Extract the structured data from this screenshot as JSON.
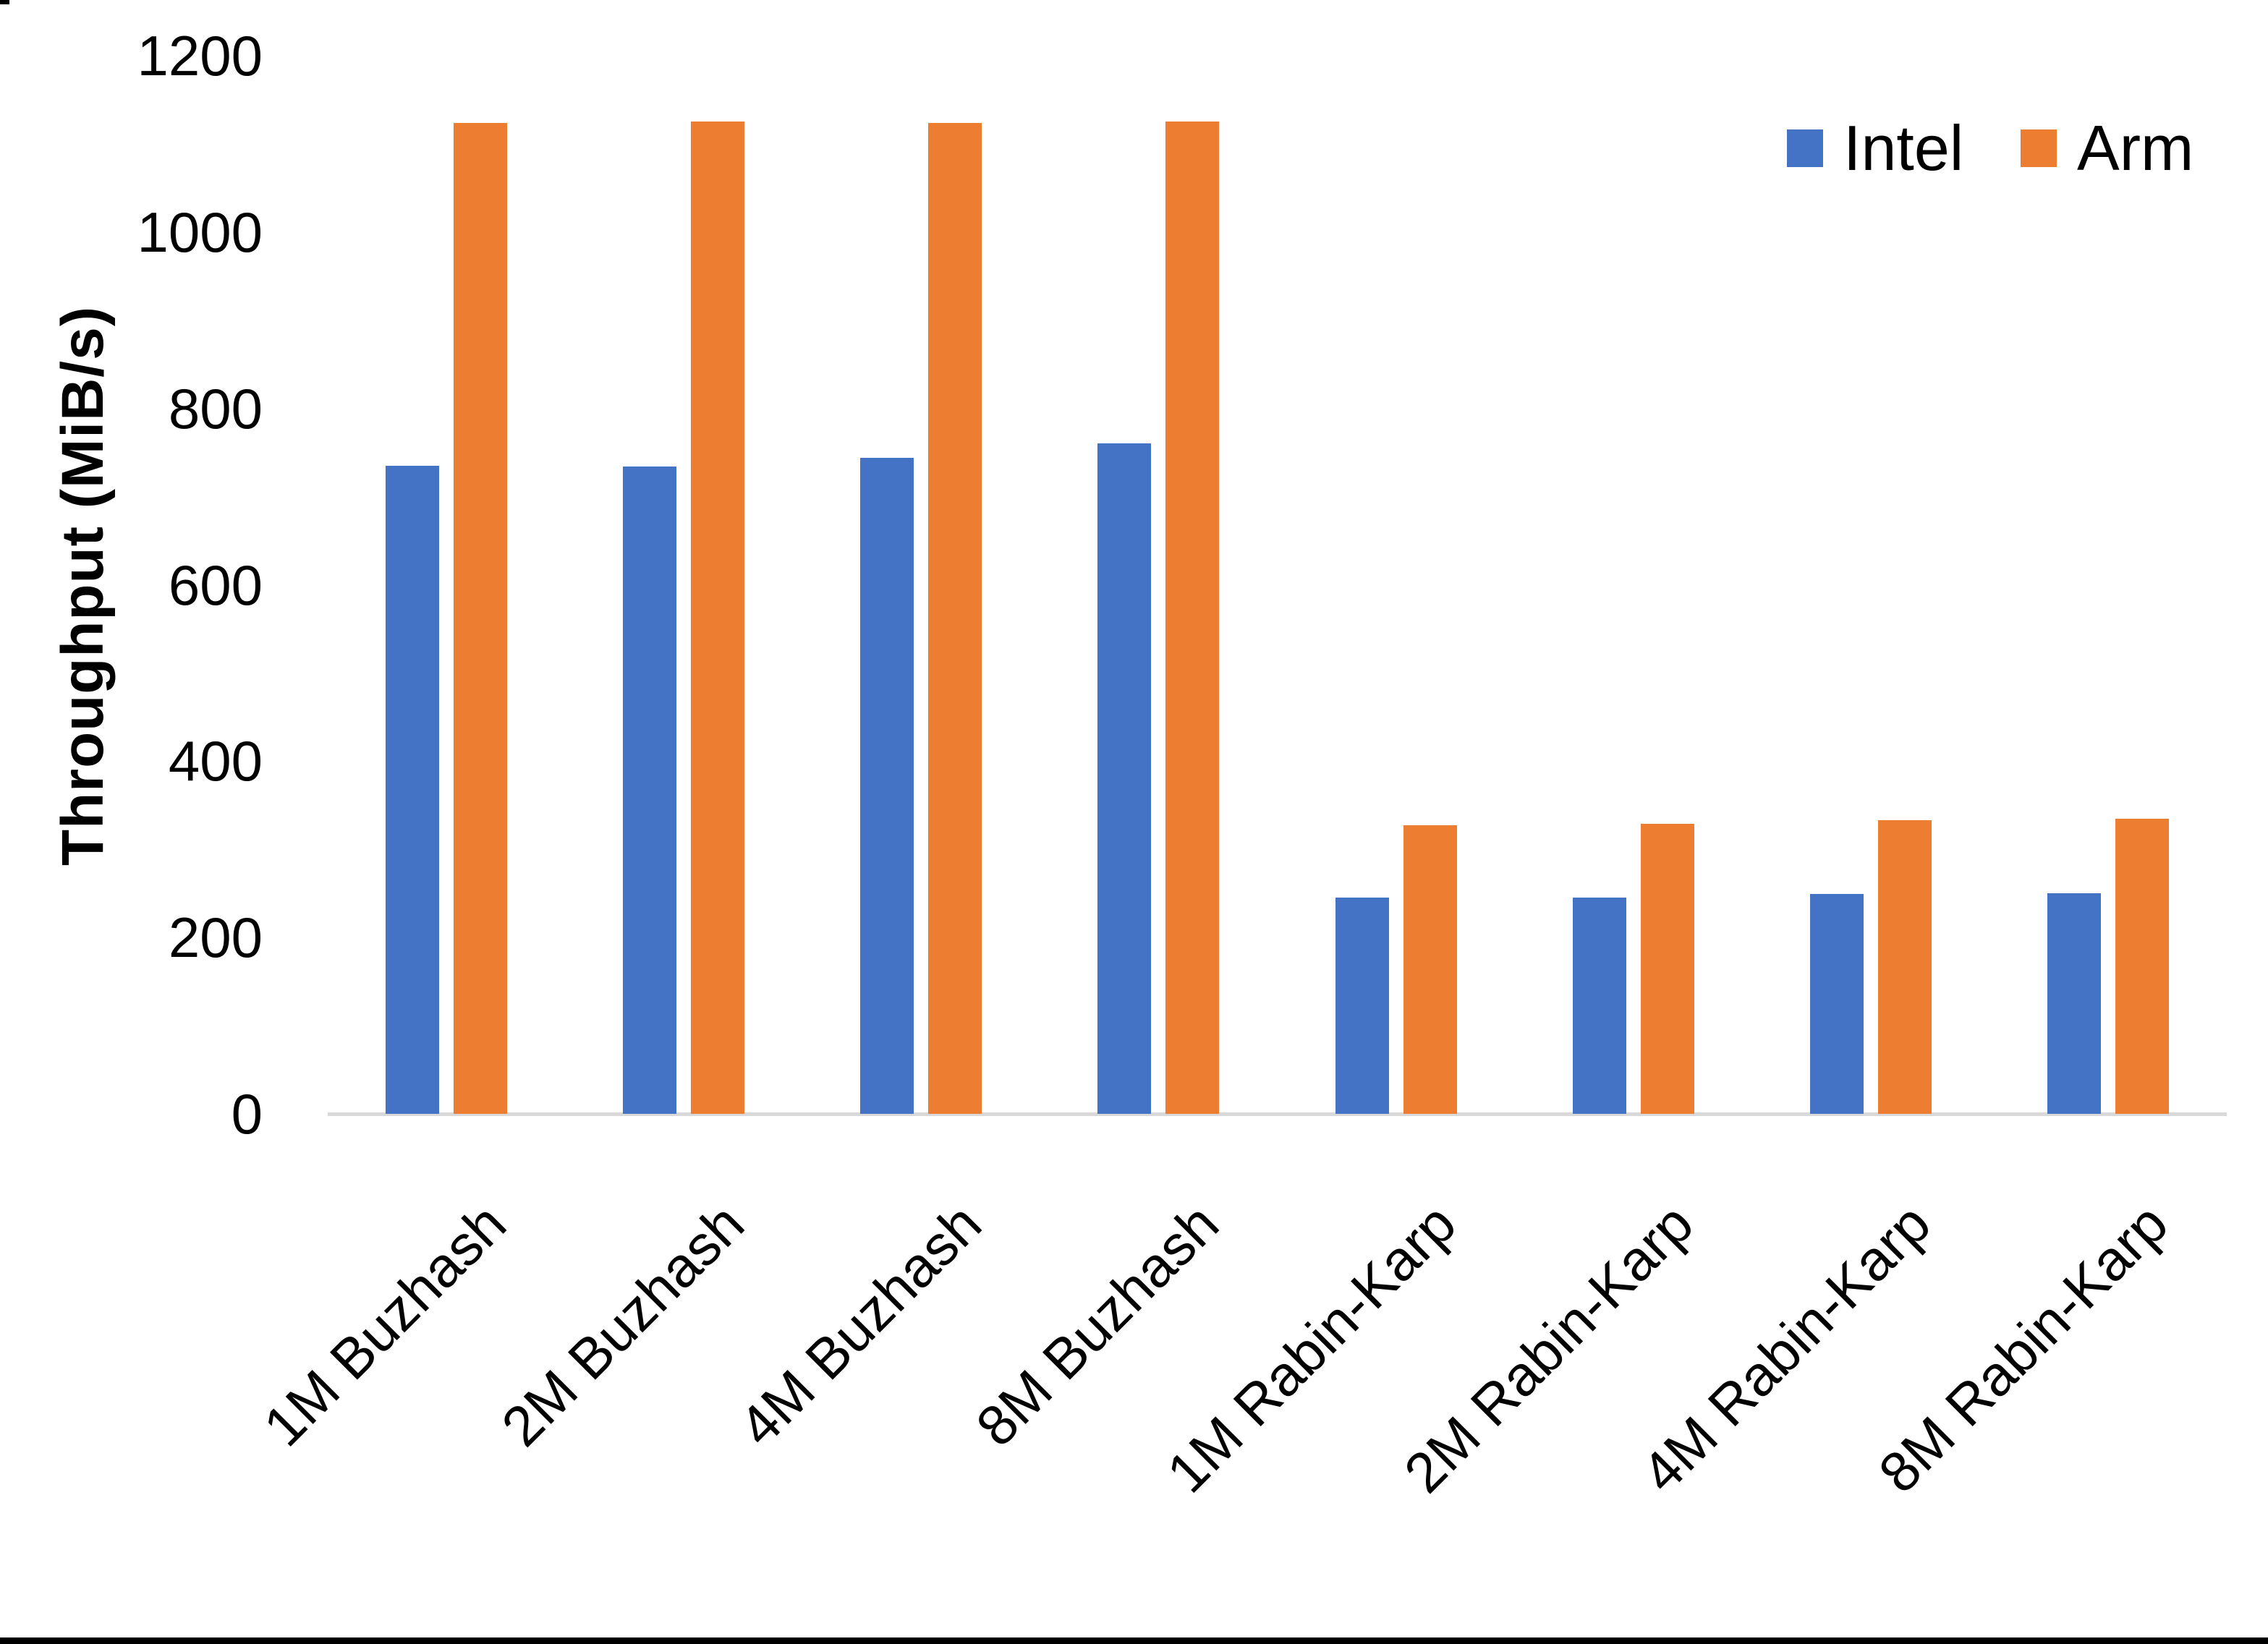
{
  "chart_data": {
    "type": "bar",
    "title": "",
    "ylabel": "Throughput (MiB/s)",
    "xlabel": "",
    "categories": [
      "1M Buzhash",
      "2M Buzhash",
      "4M Buzhash",
      "8M Buzhash",
      "1M Rabin-Karp",
      "2M Rabin-Karp",
      "4M Rabin-Karp",
      "8M Rabin-Karp"
    ],
    "series": [
      {
        "name": "Intel",
        "color": "#4472C4",
        "values": [
          735,
          734,
          744,
          760,
          245,
          245,
          249,
          250
        ]
      },
      {
        "name": "Arm",
        "color": "#ED7D31",
        "values": [
          1124,
          1125,
          1124,
          1125,
          327,
          329,
          333,
          335
        ]
      }
    ],
    "ylim": [
      0,
      1200
    ],
    "yticks": [
      0,
      200,
      400,
      600,
      800,
      1000,
      1200
    ],
    "grid": false,
    "legend_position": "top-right"
  }
}
